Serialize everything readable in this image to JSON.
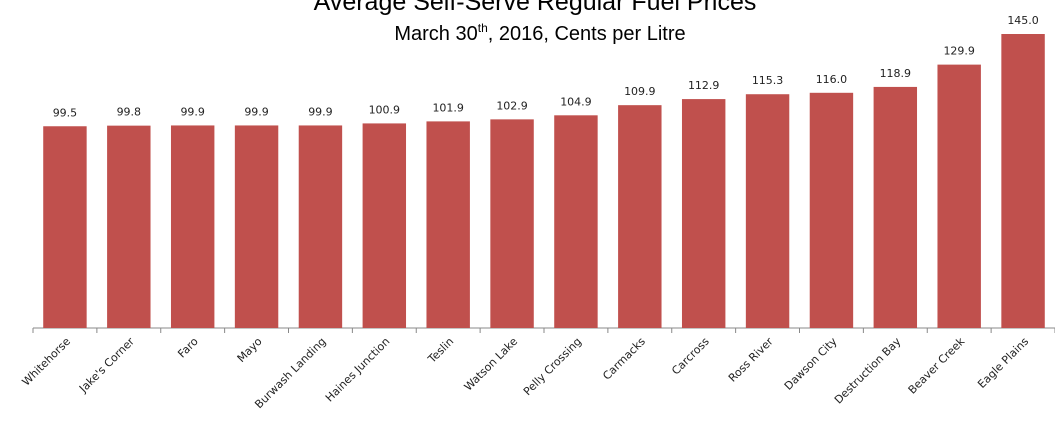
{
  "chart_data": {
    "type": "bar",
    "title": "Average Self-Serve Regular Fuel Prices",
    "subtitle": [
      "March 30",
      "th",
      ", 2016, Cents per Litre"
    ],
    "categories": [
      "Whitehorse",
      "Jake's Corner",
      "Faro",
      "Mayo",
      "Burwash Landing",
      "Haines Junction",
      "Teslin",
      "Watson Lake",
      "Pelly Crossing",
      "Carmacks",
      "Carcross",
      "Ross River",
      "Dawson City",
      "Destruction Bay",
      "Beaver Creek",
      "Eagle Plains"
    ],
    "values": [
      99.5,
      99.8,
      99.9,
      99.9,
      99.9,
      100.9,
      101.9,
      102.9,
      104.9,
      109.9,
      112.9,
      115.3,
      116.0,
      118.9,
      129.9,
      145.0
    ],
    "value_labels": [
      "99.5",
      "99.8",
      "99.9",
      "99.9",
      "99.9",
      "100.9",
      "101.9",
      "102.9",
      "104.9",
      "109.9",
      "112.9",
      "115.3",
      "116.0",
      "118.9",
      "129.9",
      "145.0"
    ],
    "color": "#c0504d",
    "ylim": [
      0,
      145
    ]
  }
}
